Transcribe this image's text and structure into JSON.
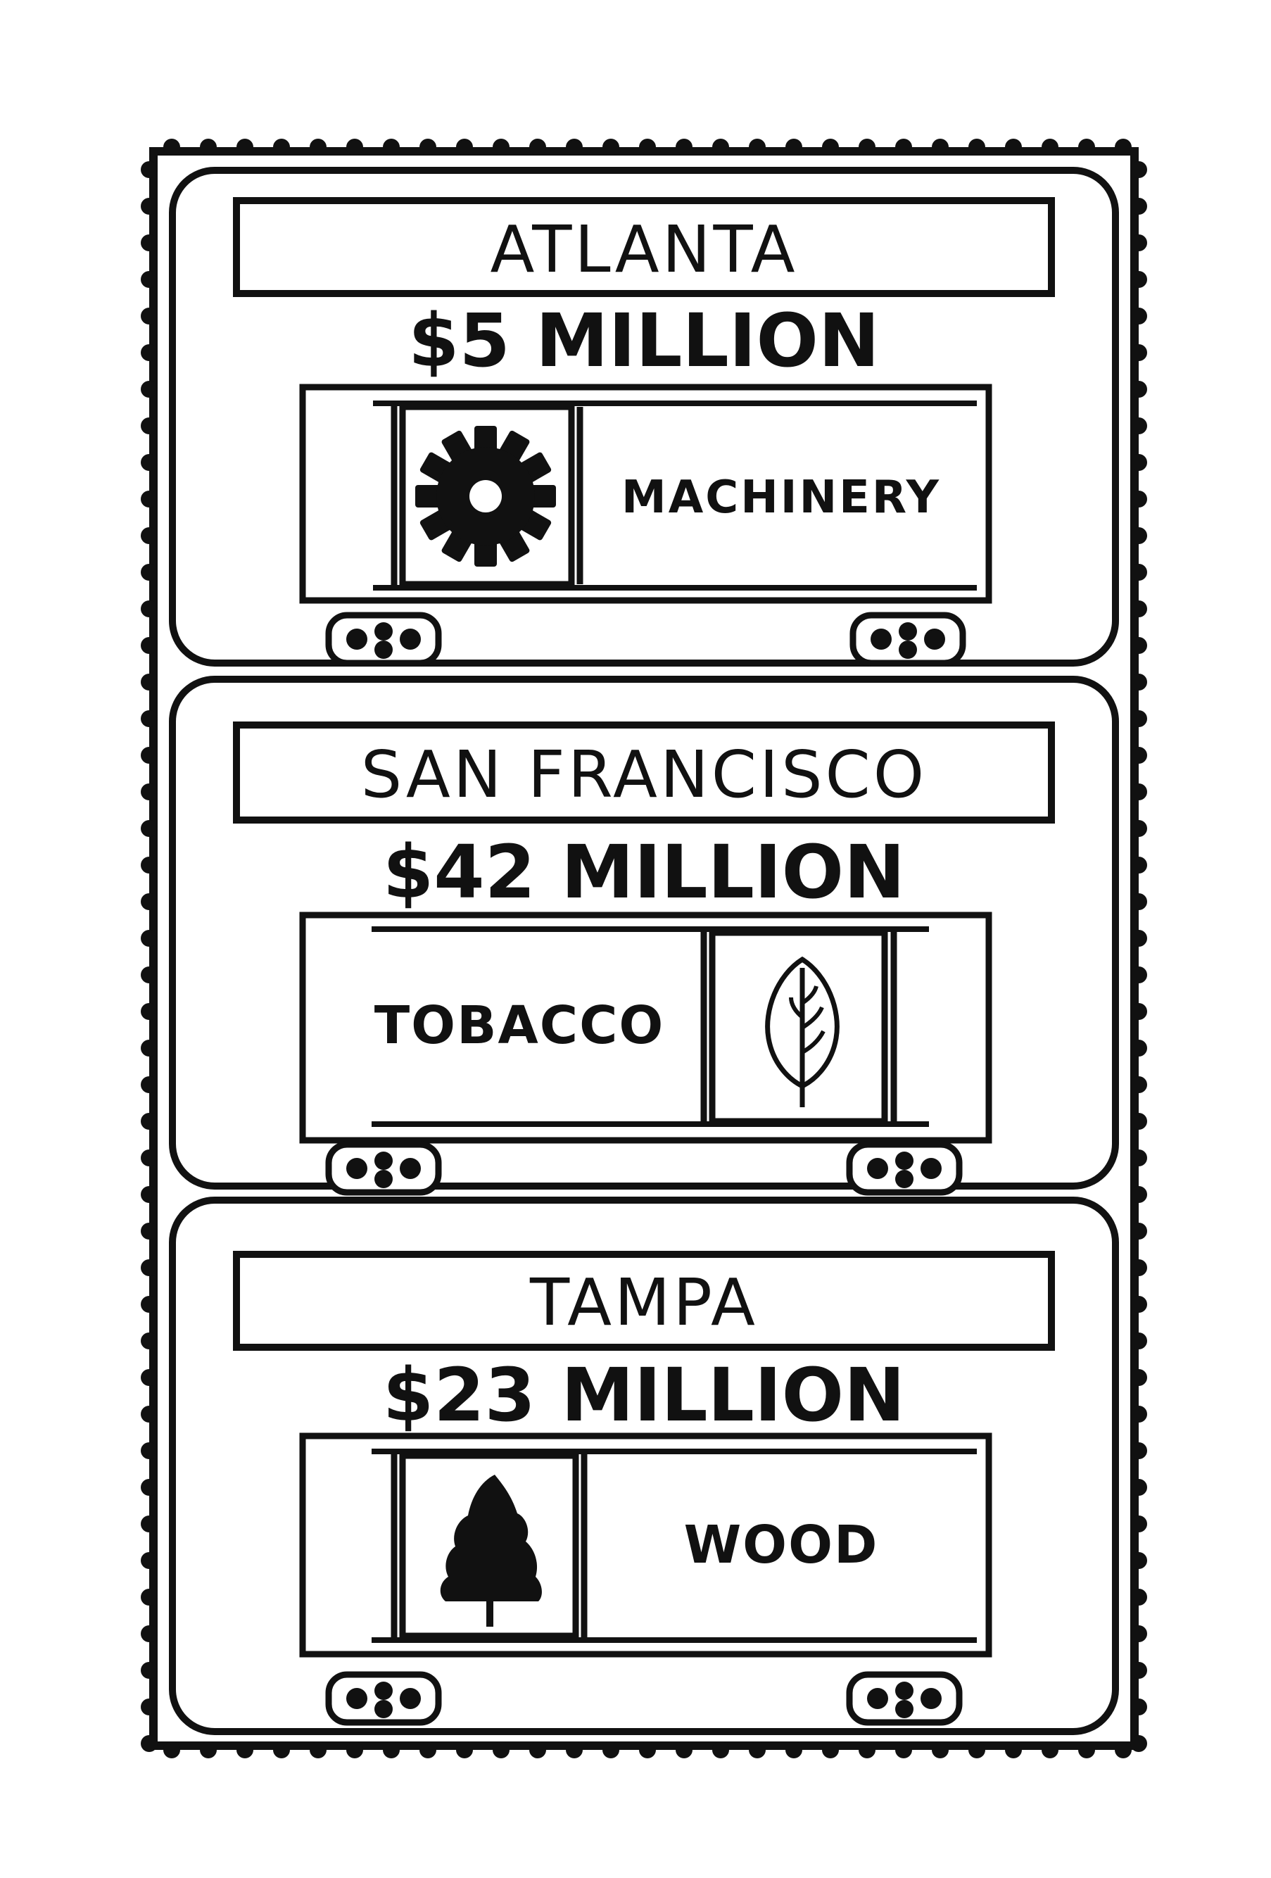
{
  "stamps": [
    {
      "city": "ATLANTA",
      "amount": "$5 MILLION",
      "cargo": "MACHINERY",
      "icon": "gear-icon"
    },
    {
      "city": "SAN  FRANCISCO",
      "amount": "$42 MILLION",
      "cargo": "TOBACCO",
      "icon": "tobacco-leaf-icon"
    },
    {
      "city": "TAMPA",
      "amount": "$23 MILLION",
      "cargo": "WOOD",
      "icon": "pine-tree-icon"
    }
  ],
  "colors": {
    "ink": "#111111",
    "paper": "#ffffff"
  }
}
